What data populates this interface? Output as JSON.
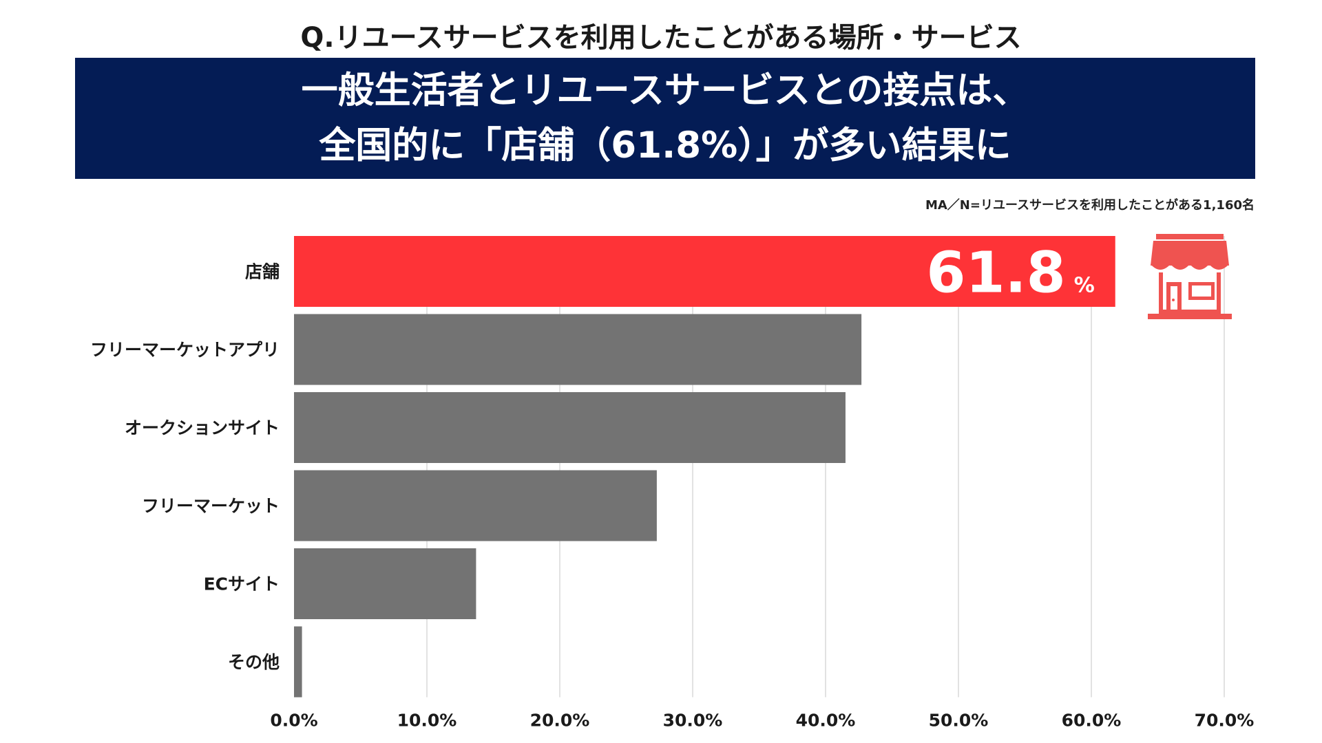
{
  "header": {
    "question": "Q.リユースサービスを利用したことがある場所・サービス",
    "headline_line1": "一般生活者とリユースサービスとの接点は、",
    "headline_line2": "全国的に「店舗（61.8%）」が多い結果に",
    "note": "MA／N=リユースサービスを利用したことがある1,160名"
  },
  "callout": {
    "value": "61.8",
    "unit": "%"
  },
  "icons": {
    "store": "store-icon"
  },
  "colors": {
    "banner": "#041c55",
    "highlight": "#fe3337",
    "bar": "#737373",
    "icon": "#ef5350",
    "grid": "#d9d9d9"
  },
  "chart_data": {
    "type": "bar",
    "orientation": "horizontal",
    "categories": [
      "店舗",
      "フリーマーケットアプリ",
      "オークションサイト",
      "フリーマーケット",
      "ECサイト",
      "その他"
    ],
    "values": [
      61.8,
      42.7,
      41.5,
      27.3,
      13.7,
      0.6
    ],
    "highlight_index": 0,
    "xlim": [
      0,
      70
    ],
    "xticks": [
      0,
      10,
      20,
      30,
      40,
      50,
      60,
      70
    ],
    "xtick_labels": [
      "0.0%",
      "10.0%",
      "20.0%",
      "30.0%",
      "40.0%",
      "50.0%",
      "60.0%",
      "70.0%"
    ],
    "grid": true,
    "title": "Q.リユースサービスを利用したことがある場所・サービス"
  }
}
